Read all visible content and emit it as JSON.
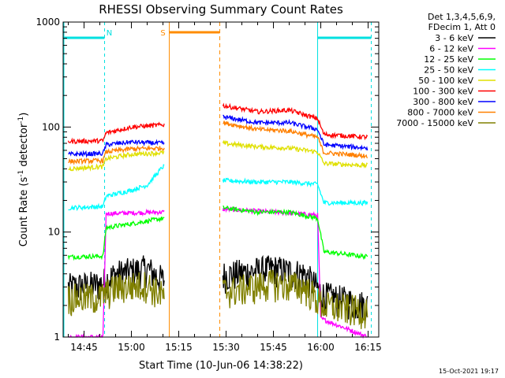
{
  "chart_data": {
    "type": "line",
    "title": "RHESSI Observing Summary Count Rates",
    "xlabel": "Start Time (10-Jun-06 14:38:22)",
    "ylabel": "Count Rate (s⁻¹ detector⁻¹)",
    "ylabel_main": "Count Rate (s",
    "ylabel_sup1": "-1",
    "ylabel_mid": " detector",
    "ylabel_sup2": "-1",
    "ylabel_end": ")",
    "y_scale": "log",
    "ylim": [
      1,
      1000
    ],
    "xlim": [
      "14:38:22",
      "16:18:22"
    ],
    "x_ticks": [
      "14:45",
      "15:00",
      "15:15",
      "15:30",
      "15:45",
      "16:00",
      "16:15"
    ],
    "y_ticks": [
      "1",
      "10",
      "100",
      "1000"
    ],
    "legend_header": [
      "Det 1,3,4,5,6,9,",
      "FDecim 1, Att 0"
    ],
    "legend_placement": "right",
    "timestamp": "15-Oct-2021 19:17",
    "markers": [
      {
        "label": "N",
        "color": "#00e0e0",
        "style": "dashed",
        "time": "14:53"
      },
      {
        "label": "S",
        "color": "#ff8c00",
        "style": "solid",
        "time": "15:10"
      }
    ],
    "intervals": [
      {
        "kind": "night",
        "color": "#00e0e0",
        "start": "14:38:22",
        "end": "14:51:30"
      },
      {
        "kind": "saa",
        "color": "#ff8c00",
        "start": "15:12",
        "end": "15:28"
      },
      {
        "kind": "night",
        "color": "#00e0e0",
        "start": "15:59",
        "end": "16:16"
      }
    ],
    "series": [
      {
        "name": "3 - 6 keV",
        "color": "#000000",
        "values": [
          [
            "14:40",
            3.0
          ],
          [
            "14:50",
            3.2
          ],
          [
            "14:55",
            4.0
          ],
          [
            "15:05",
            4.5
          ],
          [
            "15:10",
            3.5
          ],
          [
            "15:32",
            4.0
          ],
          [
            "15:45",
            4.5
          ],
          [
            "15:55",
            4.0
          ],
          [
            "16:01",
            2.5
          ],
          [
            "16:15",
            2.0
          ]
        ]
      },
      {
        "name": "6 - 12 keV",
        "color": "#ff00ff",
        "values": [
          [
            "14:40",
            1.0
          ],
          [
            "14:51",
            1.0
          ],
          [
            "14:52",
            15.0
          ],
          [
            "15:10",
            15.5
          ],
          [
            "15:30",
            16.5
          ],
          [
            "15:45",
            15.5
          ],
          [
            "15:59",
            14.5
          ],
          [
            "16:00",
            1.5
          ],
          [
            "16:15",
            1.0
          ]
        ]
      },
      {
        "name": "12 - 25 keV",
        "color": "#00ff00",
        "values": [
          [
            "14:40",
            5.8
          ],
          [
            "14:51",
            5.9
          ],
          [
            "14:52",
            11.0
          ],
          [
            "15:00",
            12.0
          ],
          [
            "15:10",
            13.5
          ],
          [
            "15:29",
            17.0
          ],
          [
            "15:40",
            15.5
          ],
          [
            "15:50",
            15.5
          ],
          [
            "15:59",
            13.5
          ],
          [
            "16:01",
            6.5
          ],
          [
            "16:15",
            5.8
          ]
        ]
      },
      {
        "name": "25 - 50 keV",
        "color": "#00ffff",
        "values": [
          [
            "14:40",
            17.0
          ],
          [
            "14:51",
            17.5
          ],
          [
            "14:52",
            22.0
          ],
          [
            "15:00",
            25.0
          ],
          [
            "15:05",
            28.0
          ],
          [
            "15:10",
            42.0
          ],
          [
            "15:29",
            31.0
          ],
          [
            "15:40",
            30.0
          ],
          [
            "15:50",
            30.0
          ],
          [
            "15:59",
            28.5
          ],
          [
            "16:01",
            19.0
          ],
          [
            "16:15",
            19.0
          ]
        ]
      },
      {
        "name": "50 - 100 keV",
        "color": "#e0e000",
        "values": [
          [
            "14:40",
            40.0
          ],
          [
            "14:51",
            42.0
          ],
          [
            "14:52",
            50.0
          ],
          [
            "15:00",
            55.0
          ],
          [
            "15:10",
            57.0
          ],
          [
            "15:29",
            70.0
          ],
          [
            "15:40",
            65.0
          ],
          [
            "15:50",
            63.0
          ],
          [
            "15:59",
            58.0
          ],
          [
            "16:01",
            45.0
          ],
          [
            "16:15",
            43.0
          ]
        ]
      },
      {
        "name": "100 - 300 keV",
        "color": "#ff0000",
        "values": [
          [
            "14:40",
            73.0
          ],
          [
            "14:51",
            74.0
          ],
          [
            "14:52",
            88.0
          ],
          [
            "15:00",
            100.0
          ],
          [
            "15:10",
            105.0
          ],
          [
            "15:29",
            160.0
          ],
          [
            "15:40",
            140.0
          ],
          [
            "15:50",
            145.0
          ],
          [
            "15:59",
            120.0
          ],
          [
            "16:01",
            85.0
          ],
          [
            "16:15",
            80.0
          ]
        ]
      },
      {
        "name": "300 - 800 keV",
        "color": "#0000ff",
        "values": [
          [
            "14:40",
            55.0
          ],
          [
            "14:51",
            56.0
          ],
          [
            "14:52",
            68.0
          ],
          [
            "15:00",
            72.0
          ],
          [
            "15:10",
            70.0
          ],
          [
            "15:29",
            125.0
          ],
          [
            "15:40",
            110.0
          ],
          [
            "15:50",
            110.0
          ],
          [
            "15:59",
            95.0
          ],
          [
            "16:01",
            68.0
          ],
          [
            "16:15",
            63.0
          ]
        ]
      },
      {
        "name": "800 - 7000 keV",
        "color": "#ff8000",
        "values": [
          [
            "14:40",
            47.0
          ],
          [
            "14:51",
            48.0
          ],
          [
            "14:52",
            58.0
          ],
          [
            "15:00",
            62.0
          ],
          [
            "15:10",
            63.0
          ],
          [
            "15:29",
            110.0
          ],
          [
            "15:40",
            95.0
          ],
          [
            "15:50",
            92.0
          ],
          [
            "15:59",
            80.0
          ],
          [
            "16:01",
            57.0
          ],
          [
            "16:15",
            53.0
          ]
        ]
      },
      {
        "name": "7000 - 15000 keV",
        "color": "#808000",
        "values": [
          [
            "14:40",
            2.4
          ],
          [
            "14:50",
            2.4
          ],
          [
            "14:55",
            3.0
          ],
          [
            "15:05",
            3.2
          ],
          [
            "15:10",
            2.5
          ],
          [
            "15:32",
            2.8
          ],
          [
            "15:45",
            3.3
          ],
          [
            "15:55",
            3.0
          ],
          [
            "16:01",
            2.0
          ],
          [
            "16:15",
            1.8
          ]
        ]
      }
    ]
  }
}
